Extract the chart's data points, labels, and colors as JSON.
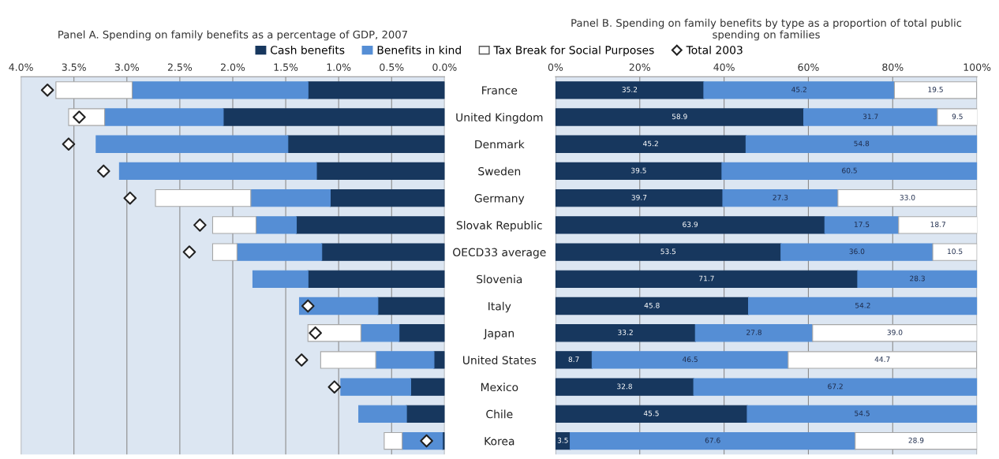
{
  "chart_data": [
    {
      "type": "bar",
      "orientation": "horizontal",
      "stacked": true,
      "title": "Panel A. Spending on family benefits as a percentage of GDP, 2007",
      "categories": [
        "France",
        "United Kingdom",
        "Denmark",
        "Sweden",
        "Germany",
        "Slovak Republic",
        "OECD33 average",
        "Slovenia",
        "Italy",
        "Japan",
        "United States",
        "Mexico",
        "Chile",
        "Korea"
      ],
      "series": [
        {
          "name": "Cash benefits",
          "color": "#17375e",
          "values": [
            1.29,
            2.09,
            1.48,
            1.21,
            1.08,
            1.4,
            1.16,
            1.29,
            0.63,
            0.43,
            0.1,
            0.32,
            0.36,
            0.02
          ]
        },
        {
          "name": "Benefits in kind",
          "color": "#558ed5",
          "values": [
            1.66,
            1.12,
            1.81,
            1.86,
            0.75,
            0.38,
            0.8,
            0.52,
            0.74,
            0.36,
            0.55,
            0.66,
            0.45,
            0.38
          ]
        },
        {
          "name": "Tax Break for Social Purposes",
          "color": "#ffffff",
          "values": [
            0.72,
            0.34,
            null,
            null,
            0.9,
            0.41,
            0.23,
            null,
            null,
            0.5,
            0.52,
            null,
            null,
            0.17
          ]
        },
        {
          "name": "Total 2003",
          "type": "scatter",
          "marker": "diamond",
          "color": "#ffffff",
          "values": [
            3.75,
            3.45,
            3.55,
            3.22,
            2.97,
            2.31,
            2.41,
            null,
            1.29,
            1.22,
            1.35,
            1.04,
            null,
            0.17
          ]
        }
      ],
      "xlim": [
        4.0,
        0.0
      ],
      "xticks": [
        {
          "value": 4.0,
          "label": "4.0%"
        },
        {
          "value": 3.5,
          "label": "3.5%"
        },
        {
          "value": 3.0,
          "label": "3.0%"
        },
        {
          "value": 2.5,
          "label": "2.5%"
        },
        {
          "value": 2.0,
          "label": "2.0%"
        },
        {
          "value": 1.5,
          "label": "1.5%"
        },
        {
          "value": 1.0,
          "label": "1.0%"
        },
        {
          "value": 0.5,
          "label": "0.5%"
        },
        {
          "value": 0.0,
          "label": "0.0%"
        }
      ],
      "grid": "x",
      "legend": "top"
    },
    {
      "type": "bar",
      "orientation": "horizontal",
      "stacked": true,
      "title": "Panel B. Spending on family benefits by type as a proportion of total public\nspending on families",
      "categories": [
        null,
        null,
        null,
        null,
        null,
        null,
        null,
        null,
        null,
        null,
        null,
        null,
        null,
        null
      ],
      "series": [
        {
          "color": "#17375e",
          "values": [
            35.2,
            58.9,
            45.2,
            39.5,
            39.7,
            63.9,
            53.5,
            71.7,
            45.8,
            33.2,
            8.7,
            32.8,
            45.5,
            3.5
          ],
          "value_labels": [
            "35.2",
            "58.9",
            "45.2",
            "39.5",
            "39.7",
            "63.9",
            "53.5",
            "71.7",
            "45.8",
            "33.2",
            "8.7",
            "32.8",
            "45.5",
            "3.5"
          ]
        },
        {
          "color": "#558ed5",
          "values": [
            45.2,
            31.7,
            54.8,
            60.5,
            27.3,
            17.5,
            36.0,
            28.3,
            54.2,
            27.8,
            46.5,
            67.2,
            54.5,
            67.6
          ],
          "value_labels": [
            "45.2",
            "31.7",
            "54.8",
            "60.5",
            "27.3",
            "17.5",
            "36.0",
            "28.3",
            "54.2",
            "27.8",
            "46.5",
            "67.2",
            "54.5",
            "67.6"
          ]
        },
        {
          "color": "#ffffff",
          "values": [
            19.5,
            9.5,
            null,
            null,
            33.0,
            18.7,
            10.5,
            null,
            null,
            39.0,
            44.7,
            null,
            null,
            28.9
          ],
          "value_labels": [
            "19.5",
            "9.5",
            null,
            null,
            "33.0",
            "18.7",
            "10.5",
            null,
            null,
            "39.0",
            "44.7",
            null,
            null,
            "28.9"
          ]
        }
      ],
      "xlim": [
        0,
        100
      ],
      "xticks": [
        {
          "value": 0,
          "label": "0%"
        },
        {
          "value": 20,
          "label": "20%"
        },
        {
          "value": 40,
          "label": "40%"
        },
        {
          "value": 60,
          "label": "60%"
        },
        {
          "value": 80,
          "label": "80%"
        },
        {
          "value": 100,
          "label": "100%"
        }
      ],
      "grid": "x"
    }
  ]
}
